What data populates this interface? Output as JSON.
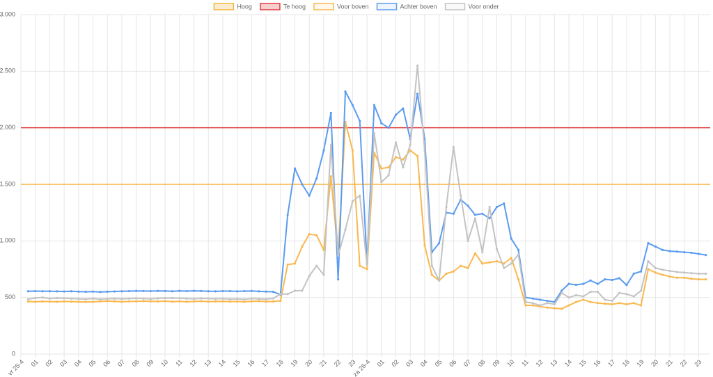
{
  "chart_data": {
    "type": "line",
    "x": [
      0.5,
      1,
      1.5,
      2,
      2.5,
      3,
      3.5,
      4,
      4.5,
      5,
      5.5,
      6,
      6.5,
      7,
      7.5,
      8,
      8.5,
      9,
      9.5,
      10,
      10.5,
      11,
      11.5,
      12,
      12.5,
      13,
      13.5,
      14,
      14.5,
      15,
      15.5,
      16,
      16.5,
      17,
      17.5,
      18,
      18.5,
      19,
      19.5,
      20,
      20.5,
      21,
      21.5,
      22,
      22.5,
      23,
      23.5,
      24,
      24.5,
      25,
      25.5,
      26,
      26.5,
      27,
      27.5,
      28,
      28.5,
      29,
      29.5,
      30,
      30.5,
      31,
      31.5,
      32,
      32.5,
      33,
      33.5,
      34,
      34.5,
      35,
      35.5,
      36,
      36.5,
      37,
      37.5,
      38,
      38.5,
      39,
      39.5,
      40,
      40.5,
      41,
      41.5,
      42,
      42.5,
      43,
      43.5,
      44,
      44.5,
      45,
      45.5,
      46,
      46.5,
      47,
      47.5
    ],
    "thresholds": [
      {
        "name": "Hoog",
        "value": 1500,
        "color": "#f5b342"
      },
      {
        "name": "Te hoog",
        "value": 2000,
        "color": "#e03a3a"
      }
    ],
    "series": [
      {
        "name": "Voor boven",
        "color": "#f9b84f",
        "values": [
          465,
          462,
          465,
          463,
          462,
          465,
          463,
          462,
          460,
          462,
          465,
          468,
          466,
          462,
          465,
          466,
          468,
          466,
          465,
          468,
          463,
          466,
          462,
          465,
          467,
          463,
          465,
          466,
          463,
          465,
          462,
          466,
          468,
          463,
          465,
          470,
          790,
          800,
          950,
          1060,
          1050,
          920,
          1570,
          870,
          2050,
          1800,
          780,
          750,
          1780,
          1640,
          1650,
          1740,
          1720,
          1800,
          1750,
          960,
          700,
          650,
          710,
          730,
          780,
          760,
          890,
          800,
          810,
          820,
          800,
          850,
          660,
          430,
          430,
          420,
          410,
          405,
          400,
          430,
          460,
          480,
          460,
          450,
          445,
          440,
          450,
          440,
          450,
          430,
          750,
          720,
          700,
          685,
          675,
          675,
          665,
          660,
          660
        ]
      },
      {
        "name": "Achter boven",
        "color": "#5b9cf0",
        "values": [
          555,
          556,
          555,
          555,
          554,
          553,
          555,
          552,
          550,
          552,
          549,
          551,
          553,
          555,
          556,
          558,
          557,
          556,
          558,
          557,
          555,
          558,
          556,
          559,
          557,
          555,
          554,
          556,
          556,
          554,
          556,
          557,
          554,
          552,
          550,
          525,
          1230,
          1640,
          1500,
          1400,
          1550,
          1800,
          2130,
          660,
          2320,
          2200,
          2060,
          800,
          2200,
          2040,
          2000,
          2115,
          2170,
          1900,
          2300,
          1900,
          900,
          980,
          1250,
          1240,
          1365,
          1310,
          1230,
          1240,
          1200,
          1300,
          1330,
          1020,
          920,
          500,
          490,
          480,
          470,
          460,
          560,
          620,
          612,
          620,
          650,
          620,
          660,
          655,
          670,
          610,
          710,
          730,
          980,
          950,
          920,
          910,
          905,
          900,
          895,
          885,
          875
        ]
      },
      {
        "name": "Voor onder",
        "color": "#c3c3c3",
        "values": [
          485,
          495,
          500,
          490,
          495,
          493,
          490,
          488,
          485,
          490,
          484,
          488,
          490,
          487,
          490,
          492,
          490,
          487,
          492,
          494,
          495,
          493,
          490,
          488,
          492,
          490,
          488,
          490,
          485,
          488,
          483,
          490,
          488,
          485,
          492,
          530,
          530,
          560,
          560,
          690,
          780,
          700,
          1850,
          870,
          1100,
          1350,
          1400,
          790,
          1950,
          1520,
          1580,
          1870,
          1650,
          1850,
          2550,
          1800,
          780,
          650,
          1300,
          1830,
          1400,
          1000,
          1200,
          900,
          1300,
          930,
          760,
          800,
          880,
          460,
          450,
          430,
          450,
          440,
          540,
          500,
          520,
          510,
          550,
          550,
          480,
          470,
          540,
          530,
          510,
          560,
          820,
          760,
          745,
          735,
          725,
          720,
          715,
          710,
          710
        ]
      }
    ],
    "xlim": [
      0,
      47.8
    ],
    "xticks": [
      {
        "value": 0,
        "label": "vr 25-4"
      },
      {
        "value": 1,
        "label": "01"
      },
      {
        "value": 2,
        "label": "02"
      },
      {
        "value": 3,
        "label": "03"
      },
      {
        "value": 4,
        "label": "04"
      },
      {
        "value": 5,
        "label": "05"
      },
      {
        "value": 6,
        "label": "06"
      },
      {
        "value": 7,
        "label": "07"
      },
      {
        "value": 8,
        "label": "08"
      },
      {
        "value": 9,
        "label": "09"
      },
      {
        "value": 10,
        "label": "10"
      },
      {
        "value": 11,
        "label": "11"
      },
      {
        "value": 12,
        "label": "12"
      },
      {
        "value": 13,
        "label": "13"
      },
      {
        "value": 14,
        "label": "14"
      },
      {
        "value": 15,
        "label": "15"
      },
      {
        "value": 16,
        "label": "16"
      },
      {
        "value": 17,
        "label": "17"
      },
      {
        "value": 18,
        "label": "18"
      },
      {
        "value": 19,
        "label": "19"
      },
      {
        "value": 20,
        "label": "20"
      },
      {
        "value": 21,
        "label": "21"
      },
      {
        "value": 22,
        "label": "22"
      },
      {
        "value": 23,
        "label": "23"
      },
      {
        "value": 24,
        "label": "za 26-4"
      },
      {
        "value": 25,
        "label": "01"
      },
      {
        "value": 26,
        "label": "02"
      },
      {
        "value": 27,
        "label": "03"
      },
      {
        "value": 28,
        "label": "04"
      },
      {
        "value": 29,
        "label": "05"
      },
      {
        "value": 30,
        "label": "06"
      },
      {
        "value": 31,
        "label": "07"
      },
      {
        "value": 32,
        "label": "08"
      },
      {
        "value": 33,
        "label": "09"
      },
      {
        "value": 34,
        "label": "10"
      },
      {
        "value": 35,
        "label": "11"
      },
      {
        "value": 36,
        "label": "12"
      },
      {
        "value": 37,
        "label": "13"
      },
      {
        "value": 38,
        "label": "14"
      },
      {
        "value": 39,
        "label": "15"
      },
      {
        "value": 40,
        "label": "16"
      },
      {
        "value": 41,
        "label": "17"
      },
      {
        "value": 42,
        "label": "18"
      },
      {
        "value": 43,
        "label": "19"
      },
      {
        "value": 44,
        "label": "20"
      },
      {
        "value": 45,
        "label": "21"
      },
      {
        "value": 46,
        "label": "22"
      },
      {
        "value": 47,
        "label": "23"
      }
    ],
    "ylim": [
      0,
      3000
    ],
    "yticks": [
      0,
      500,
      {
        "value": 1000,
        "label": "1.000"
      },
      {
        "value": 1500,
        "label": "1.500"
      },
      {
        "value": 2000,
        "label": "2.000"
      },
      {
        "value": 2500,
        "label": "2.500"
      },
      {
        "value": 3000,
        "label": "3.000"
      }
    ],
    "grid": true
  }
}
